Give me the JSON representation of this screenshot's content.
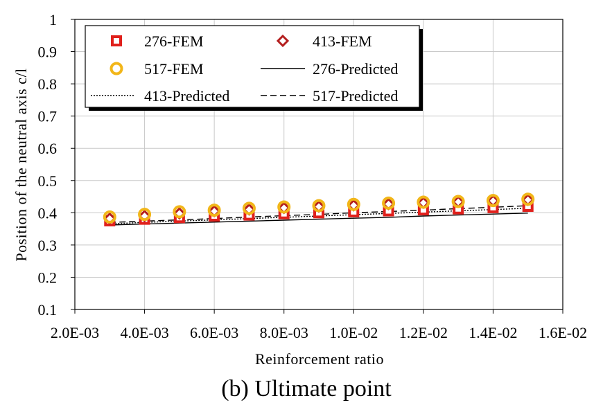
{
  "chart_data": {
    "type": "scatter",
    "caption": "(b) Ultimate point",
    "xlabel": "Reinforcement ratio",
    "ylabel": "Position of the neutral axis c/l",
    "xlim": [
      0.002,
      0.016
    ],
    "ylim": [
      0.1,
      1.0
    ],
    "x_ticks": [
      0.002,
      0.004,
      0.006,
      0.008,
      0.01,
      0.012,
      0.014,
      0.016
    ],
    "x_tick_labels": [
      "2.0E-03",
      "4.0E-03",
      "6.0E-03",
      "8.0E-03",
      "1.0E-02",
      "1.2E-02",
      "1.4E-02",
      "1.6E-02"
    ],
    "y_ticks": [
      0.1,
      0.2,
      0.3,
      0.4,
      0.5,
      0.6,
      0.7,
      0.8,
      0.9,
      1.0
    ],
    "y_tick_labels": [
      "0.1",
      "0.2",
      "0.3",
      "0.4",
      "0.5",
      "0.6",
      "0.7",
      "0.8",
      "0.9",
      "1"
    ],
    "grid": true,
    "legend_position": "top-left",
    "x": [
      0.003,
      0.004,
      0.005,
      0.006,
      0.007,
      0.008,
      0.009,
      0.01,
      0.011,
      0.012,
      0.013,
      0.014,
      0.015
    ],
    "series": [
      {
        "name": "276-FEM",
        "kind": "marker",
        "marker": "square",
        "color": "#e0201c",
        "values": [
          0.375,
          0.38,
          0.385,
          0.39,
          0.393,
          0.397,
          0.4,
          0.403,
          0.406,
          0.409,
          0.412,
          0.416,
          0.42
        ]
      },
      {
        "name": "413-FEM",
        "kind": "marker",
        "marker": "diamond",
        "color": "#b41e1e",
        "values": [
          0.382,
          0.39,
          0.398,
          0.405,
          0.41,
          0.415,
          0.419,
          0.423,
          0.427,
          0.431,
          0.434,
          0.437,
          0.44
        ]
      },
      {
        "name": "517-FEM",
        "kind": "marker",
        "marker": "circle",
        "color": "#f2b619",
        "values": [
          0.387,
          0.395,
          0.403,
          0.408,
          0.414,
          0.418,
          0.422,
          0.426,
          0.43,
          0.433,
          0.435,
          0.438,
          0.442
        ]
      },
      {
        "name": "276-Predicted",
        "kind": "line",
        "dash": "solid",
        "color": "#000000",
        "values": [
          0.362,
          0.365,
          0.368,
          0.371,
          0.374,
          0.377,
          0.38,
          0.383,
          0.386,
          0.39,
          0.393,
          0.396,
          0.399
        ]
      },
      {
        "name": "413-Predicted",
        "kind": "line",
        "dash": "dotted",
        "color": "#000000",
        "values": [
          0.366,
          0.37,
          0.374,
          0.378,
          0.382,
          0.386,
          0.39,
          0.394,
          0.398,
          0.402,
          0.406,
          0.41,
          0.414
        ]
      },
      {
        "name": "517-Predicted",
        "kind": "line",
        "dash": "dashed",
        "color": "#000000",
        "values": [
          0.37,
          0.374,
          0.378,
          0.382,
          0.387,
          0.391,
          0.395,
          0.4,
          0.404,
          0.408,
          0.413,
          0.417,
          0.422
        ]
      }
    ]
  }
}
